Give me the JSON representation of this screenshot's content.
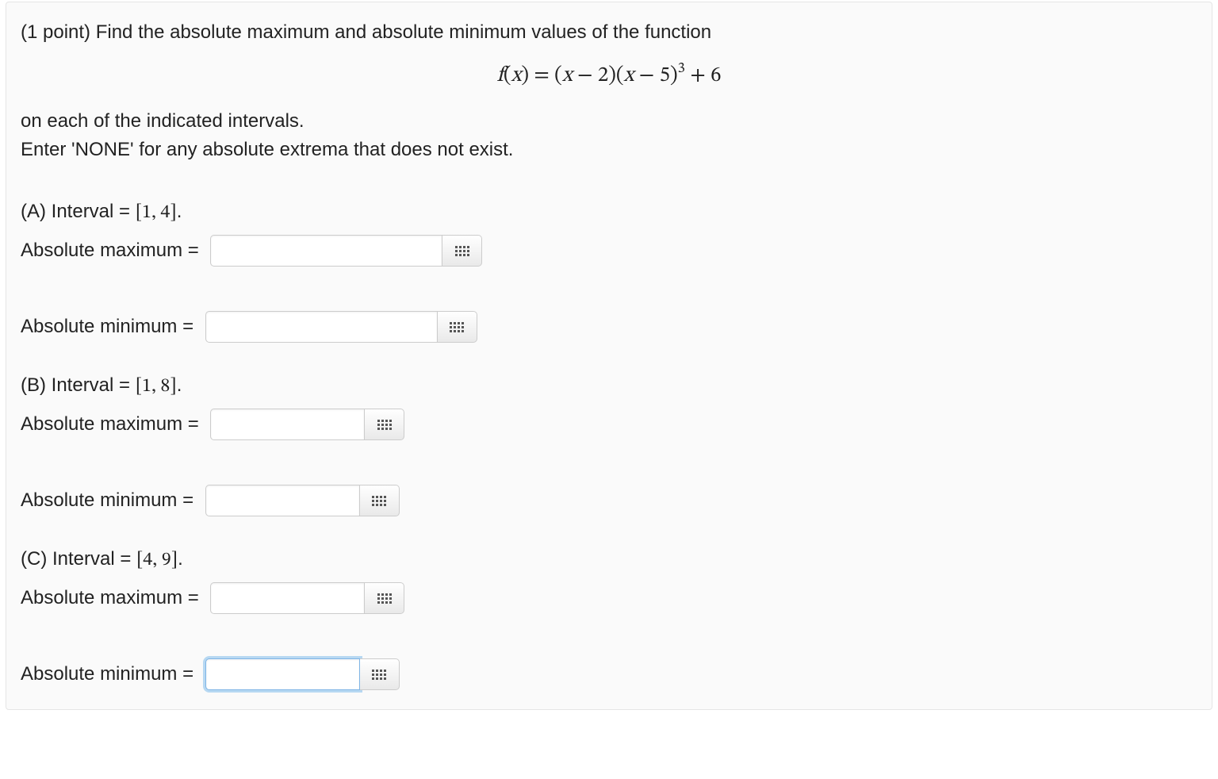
{
  "points_label": "(1 point) ",
  "intro_text": "Find the absolute maximum and absolute minimum values of the function",
  "equation_parts": {
    "fx": "f",
    "open": "(",
    "x": "x",
    "close": ")",
    "eq": " = ",
    "p1a": "(",
    "p1b": " − 2)(",
    "p1c": " − 5)",
    "exp": "3",
    "tail": " + 6"
  },
  "line2": "on each of the indicated intervals.",
  "line3": "Enter 'NONE' for any absolute extrema that does not exist.",
  "sections": {
    "A": {
      "label_prefix": "(A) Interval = ",
      "interval": "[1, 4]",
      "period": "."
    },
    "B": {
      "label_prefix": "(B) Interval = ",
      "interval": "[1, 8]",
      "period": "."
    },
    "C": {
      "label_prefix": "(C) Interval = ",
      "interval": "[4, 9]",
      "period": "."
    }
  },
  "labels": {
    "abs_max": "Absolute maximum = ",
    "abs_min": "Absolute minimum = "
  },
  "input_widths": {
    "A": 293,
    "B": 195,
    "C": 195
  },
  "colors": {
    "panel_bg": "#fafafa",
    "panel_border": "#e5e5e5",
    "text": "#222222",
    "input_border": "#cccccc",
    "focus_ring": "rgba(102,175,233,0.45)",
    "btn_grad_top": "#ffffff",
    "btn_grad_bottom": "#e9e9e9",
    "icon_dot": "#555555"
  },
  "focused_input": "C-min"
}
